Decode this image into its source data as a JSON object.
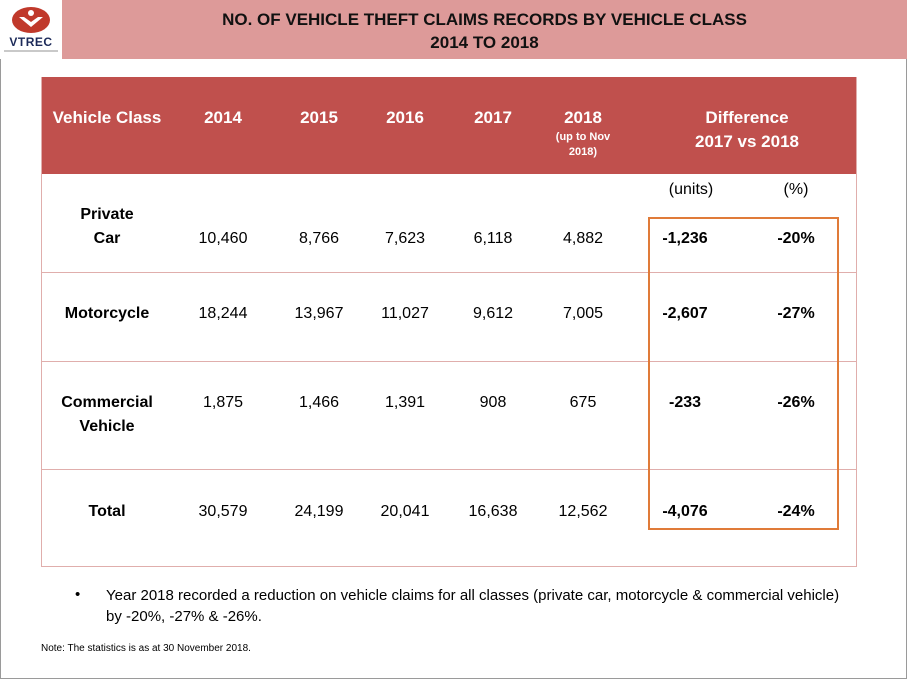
{
  "logo": {
    "text": "VTREC"
  },
  "title": {
    "line1": "NO. OF VEHICLE THEFT CLAIMS RECORDS BY VEHICLE CLASS",
    "line2": "2014 TO 2018"
  },
  "table": {
    "headers": {
      "vehicle_class": "Vehicle Class",
      "y2014": "2014",
      "y2015": "2015",
      "y2016": "2016",
      "y2017": "2017",
      "y2018": "2018",
      "y2018_sub1": "(up to Nov",
      "y2018_sub2": "2018)",
      "difference_line1": "Difference",
      "difference_line2": "2017 vs 2018",
      "units": "(units)",
      "percent": "(%)"
    },
    "rows": [
      {
        "label_line1": "Private",
        "label_line2": "Car",
        "v2014": "10,460",
        "v2015": "8,766",
        "v2016": "7,623",
        "v2017": "6,118",
        "v2018": "4,882",
        "diff_units": "-1,236",
        "diff_pct": "-20%"
      },
      {
        "label_line1": "Motorcycle",
        "label_line2": "",
        "v2014": "18,244",
        "v2015": "13,967",
        "v2016": "11,027",
        "v2017": "9,612",
        "v2018": "7,005",
        "diff_units": "-2,607",
        "diff_pct": "-27%"
      },
      {
        "label_line1": "Commercial",
        "label_line2": "Vehicle",
        "v2014": "1,875",
        "v2015": "1,466",
        "v2016": "1,391",
        "v2017": "908",
        "v2018": "675",
        "diff_units": "-233",
        "diff_pct": "-26%"
      },
      {
        "label_line1": "Total",
        "label_line2": "",
        "v2014": "30,579",
        "v2015": "24,199",
        "v2016": "20,041",
        "v2017": "16,638",
        "v2018": "12,562",
        "diff_units": "-4,076",
        "diff_pct": "-24%"
      }
    ]
  },
  "bullet": {
    "symbol": "•",
    "text": "Year 2018 recorded a reduction on vehicle claims for all classes (private car, motorcycle & commercial vehicle) by -20%, -27% & -26%."
  },
  "note": "Note:  The statistics is as at 30 November 2018.",
  "colors": {
    "header_bg": "#c0504d",
    "title_band": "#dd9a99",
    "highlight": "#e07b39"
  }
}
